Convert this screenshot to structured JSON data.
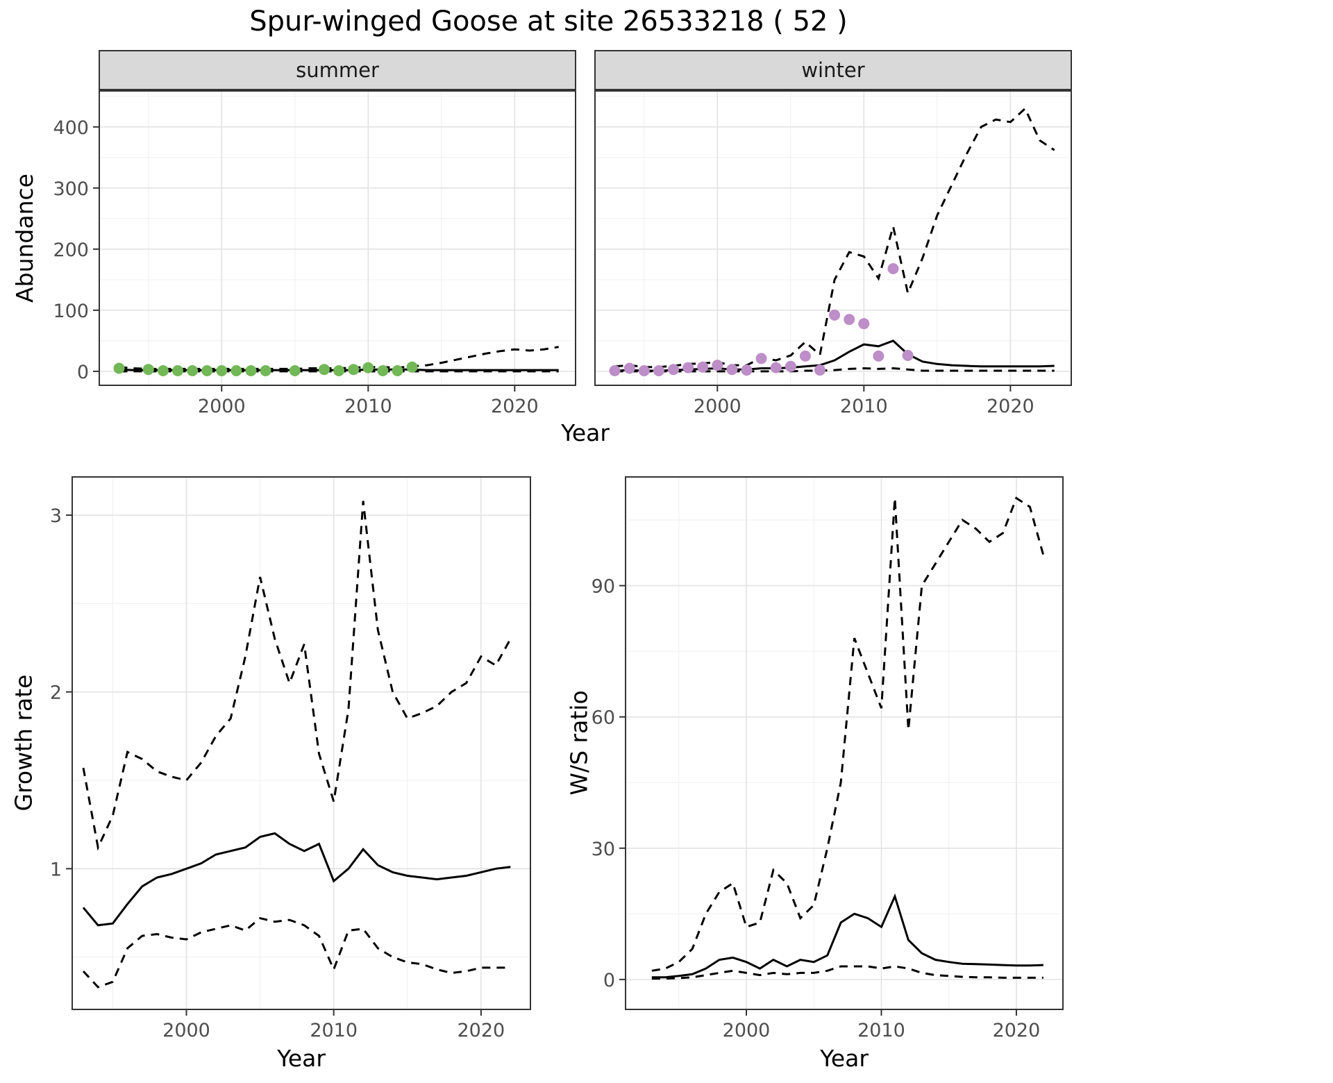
{
  "title": "Spur-winged Goose at site 26533218 ( 52 )",
  "colors": {
    "summer_point": "#73b857",
    "winter_point": "#bd8ec7",
    "line": "#000000",
    "grid_major": "#e2e2e2",
    "grid_minor": "#efefef",
    "strip_bg": "#d9d9d9",
    "panel_border": "#333333",
    "tick_label": "#4d4d4d",
    "text": "#000000"
  },
  "abundance": {
    "ylabel": "Abundance",
    "xlabel": "Year",
    "facets": [
      {
        "label": "summer"
      },
      {
        "label": "winter"
      }
    ]
  },
  "growth": {
    "ylabel": "Growth rate",
    "xlabel": "Year"
  },
  "ratio": {
    "ylabel": "W/S ratio",
    "xlabel": "Year"
  },
  "chart_data": [
    {
      "id": "abundance-summer",
      "type": "line+scatter",
      "facet": "summer",
      "ylabel": "Abundance",
      "xlabel": "Year",
      "xlim": [
        1991.6,
        2024.2
      ],
      "ylim": [
        -24,
        460
      ],
      "xticks": [
        2000,
        2010,
        2020
      ],
      "yticks": [
        0,
        100,
        200,
        300,
        400
      ],
      "grid": true,
      "series": [
        {
          "name": "fitted",
          "style": "solid",
          "x": [
            1993,
            1994,
            1995,
            1996,
            1997,
            1998,
            1999,
            2000,
            2001,
            2002,
            2003,
            2004,
            2005,
            2006,
            2007,
            2008,
            2009,
            2010,
            2011,
            2012,
            2013,
            2014,
            2015,
            2016,
            2017,
            2018,
            2019,
            2020,
            2021,
            2022,
            2023
          ],
          "y": [
            3,
            2,
            2,
            2,
            2,
            2,
            2,
            2,
            2,
            2,
            2,
            2,
            2,
            2,
            2,
            2,
            2,
            3,
            3,
            3,
            3,
            2,
            2,
            2,
            2,
            2,
            2,
            2,
            2,
            2,
            2
          ]
        },
        {
          "name": "upper-ci",
          "style": "dashed",
          "x": [
            1993,
            1994,
            1995,
            1996,
            1997,
            1998,
            1999,
            2000,
            2001,
            2002,
            2003,
            2004,
            2005,
            2006,
            2007,
            2008,
            2009,
            2010,
            2011,
            2012,
            2013,
            2014,
            2015,
            2016,
            2017,
            2018,
            2019,
            2020,
            2021,
            2022,
            2023
          ],
          "y": [
            7,
            5,
            4,
            4,
            4,
            4,
            4,
            4,
            4,
            4,
            4,
            4,
            4,
            5,
            5,
            5,
            6,
            7,
            7,
            6,
            8,
            10,
            14,
            19,
            24,
            29,
            33,
            36,
            34,
            36,
            40
          ]
        },
        {
          "name": "lower-ci",
          "style": "dashed",
          "x": [
            1993,
            1994,
            1995,
            1996,
            1997,
            1998,
            1999,
            2000,
            2001,
            2002,
            2003,
            2004,
            2005,
            2006,
            2007,
            2008,
            2009,
            2010,
            2011,
            2012,
            2013,
            2014,
            2015,
            2016,
            2017,
            2018,
            2019,
            2020,
            2021,
            2022,
            2023
          ],
          "y": [
            0,
            0,
            0,
            0,
            0,
            0,
            0,
            0,
            0,
            0,
            0,
            0,
            0,
            0,
            0,
            0,
            0,
            0,
            0,
            0,
            0,
            0,
            0,
            0,
            0,
            0,
            0,
            0,
            0,
            0,
            0
          ]
        }
      ],
      "points": {
        "name": "observed-summer",
        "color_key": "summer_point",
        "x": [
          1993,
          1995,
          1996,
          1997,
          1998,
          1999,
          2000,
          2001,
          2002,
          2003,
          2005,
          2007,
          2008,
          2009,
          2010,
          2011,
          2012,
          2013
        ],
        "y": [
          5,
          3,
          1,
          1,
          1,
          1,
          1,
          1,
          1,
          1,
          1,
          3,
          1,
          3,
          6,
          1,
          1,
          7
        ]
      }
    },
    {
      "id": "abundance-winter",
      "type": "line+scatter",
      "facet": "winter",
      "ylabel": "Abundance",
      "xlabel": "Year",
      "xlim": [
        1991.6,
        2024.2
      ],
      "ylim": [
        -24,
        460
      ],
      "xticks": [
        2000,
        2010,
        2020
      ],
      "yticks": [
        0,
        100,
        200,
        300,
        400
      ],
      "grid": true,
      "series": [
        {
          "name": "fitted",
          "style": "solid",
          "x": [
            1993,
            1994,
            1995,
            1996,
            1997,
            1998,
            1999,
            2000,
            2001,
            2002,
            2003,
            2004,
            2005,
            2006,
            2007,
            2008,
            2009,
            2010,
            2011,
            2012,
            2013,
            2014,
            2015,
            2016,
            2017,
            2018,
            2019,
            2020,
            2021,
            2022,
            2023
          ],
          "y": [
            1,
            2,
            1,
            1,
            2,
            3,
            4,
            5,
            3,
            3,
            5,
            5,
            6,
            8,
            10,
            18,
            32,
            44,
            41,
            50,
            28,
            16,
            12,
            10,
            9,
            8,
            8,
            8,
            8,
            8,
            9
          ]
        },
        {
          "name": "upper-ci",
          "style": "dashed",
          "x": [
            1993,
            1994,
            1995,
            1996,
            1997,
            1998,
            1999,
            2000,
            2001,
            2002,
            2003,
            2004,
            2005,
            2006,
            2007,
            2008,
            2009,
            2010,
            2011,
            2012,
            2013,
            2014,
            2015,
            2016,
            2017,
            2018,
            2019,
            2020,
            2021,
            2022,
            2023
          ],
          "y": [
            8,
            10,
            7,
            7,
            9,
            12,
            13,
            15,
            10,
            10,
            22,
            18,
            26,
            48,
            27,
            150,
            195,
            188,
            152,
            237,
            128,
            185,
            255,
            305,
            355,
            400,
            412,
            408,
            430,
            378,
            362
          ]
        },
        {
          "name": "lower-ci",
          "style": "dashed",
          "x": [
            1993,
            1994,
            1995,
            1996,
            1997,
            1998,
            1999,
            2000,
            2001,
            2002,
            2003,
            2004,
            2005,
            2006,
            2007,
            2008,
            2009,
            2010,
            2011,
            2012,
            2013,
            2014,
            2015,
            2016,
            2017,
            2018,
            2019,
            2020,
            2021,
            2022,
            2023
          ],
          "y": [
            0,
            0,
            0,
            0,
            0,
            0,
            0,
            0,
            0,
            0,
            0,
            0,
            0,
            1,
            1,
            2,
            4,
            5,
            4,
            5,
            3,
            1,
            1,
            1,
            1,
            1,
            1,
            1,
            1,
            1,
            1
          ]
        }
      ],
      "points": {
        "name": "observed-winter",
        "color_key": "winter_point",
        "x": [
          1993,
          1994,
          1995,
          1996,
          1997,
          1998,
          1999,
          2000,
          2001,
          2002,
          2003,
          2004,
          2005,
          2006,
          2007,
          2008,
          2009,
          2010,
          2011,
          2012,
          2013
        ],
        "y": [
          1,
          5,
          1,
          1,
          3,
          6,
          7,
          10,
          3,
          2,
          21,
          6,
          8,
          25,
          2,
          92,
          85,
          78,
          25,
          168,
          26
        ]
      }
    },
    {
      "id": "growth-rate",
      "type": "line",
      "title": "",
      "ylabel": "Growth rate",
      "xlabel": "Year",
      "xlim": [
        1992.2,
        2023.4
      ],
      "ylim": [
        0.2,
        3.22
      ],
      "xticks": [
        2000,
        2010,
        2020
      ],
      "yticks": [
        1,
        2,
        3
      ],
      "grid": true,
      "series": [
        {
          "name": "fitted",
          "style": "solid",
          "x": [
            1993,
            1994,
            1995,
            1996,
            1997,
            1998,
            1999,
            2000,
            2001,
            2002,
            2003,
            2004,
            2005,
            2006,
            2007,
            2008,
            2009,
            2010,
            2011,
            2012,
            2013,
            2014,
            2015,
            2016,
            2017,
            2018,
            2019,
            2020,
            2021,
            2022
          ],
          "y": [
            0.78,
            0.68,
            0.69,
            0.8,
            0.9,
            0.95,
            0.97,
            1.0,
            1.03,
            1.08,
            1.1,
            1.12,
            1.18,
            1.2,
            1.14,
            1.1,
            1.14,
            0.93,
            1.0,
            1.11,
            1.02,
            0.98,
            0.96,
            0.95,
            0.94,
            0.95,
            0.96,
            0.98,
            1.0,
            1.01
          ]
        },
        {
          "name": "upper-ci",
          "style": "dashed",
          "x": [
            1993,
            1994,
            1995,
            1996,
            1997,
            1998,
            1999,
            2000,
            2001,
            2002,
            2003,
            2004,
            2005,
            2006,
            2007,
            2008,
            2009,
            2010,
            2011,
            2012,
            2013,
            2014,
            2015,
            2016,
            2017,
            2018,
            2019,
            2020,
            2021,
            2022
          ],
          "y": [
            1.57,
            1.12,
            1.3,
            1.66,
            1.62,
            1.55,
            1.52,
            1.5,
            1.6,
            1.75,
            1.85,
            2.2,
            2.65,
            2.3,
            2.05,
            2.27,
            1.65,
            1.38,
            1.9,
            3.08,
            2.35,
            2.0,
            1.85,
            1.88,
            1.92,
            2.0,
            2.05,
            2.2,
            2.15,
            2.3
          ]
        },
        {
          "name": "lower-ci",
          "style": "dashed",
          "x": [
            1993,
            1994,
            1995,
            1996,
            1997,
            1998,
            1999,
            2000,
            2001,
            2002,
            2003,
            2004,
            2005,
            2006,
            2007,
            2008,
            2009,
            2010,
            2011,
            2012,
            2013,
            2014,
            2015,
            2016,
            2017,
            2018,
            2019,
            2020,
            2021,
            2022
          ],
          "y": [
            0.42,
            0.33,
            0.36,
            0.55,
            0.62,
            0.63,
            0.61,
            0.6,
            0.64,
            0.66,
            0.68,
            0.65,
            0.72,
            0.7,
            0.71,
            0.68,
            0.62,
            0.43,
            0.65,
            0.66,
            0.55,
            0.5,
            0.47,
            0.46,
            0.43,
            0.41,
            0.42,
            0.44,
            0.44,
            0.44
          ]
        }
      ]
    },
    {
      "id": "ws-ratio",
      "type": "line",
      "title": "",
      "ylabel": "W/S ratio",
      "xlabel": "Year",
      "xlim": [
        1991.0,
        2023.5
      ],
      "ylim": [
        -7,
        115
      ],
      "xticks": [
        2000,
        2010,
        2020
      ],
      "yticks": [
        0,
        30,
        60,
        90
      ],
      "grid": true,
      "series": [
        {
          "name": "fitted",
          "style": "solid",
          "x": [
            1993,
            1994,
            1995,
            1996,
            1997,
            1998,
            1999,
            2000,
            2001,
            2002,
            2003,
            2004,
            2005,
            2006,
            2007,
            2008,
            2009,
            2010,
            2011,
            2012,
            2013,
            2014,
            2015,
            2016,
            2017,
            2018,
            2019,
            2020,
            2021,
            2022
          ],
          "y": [
            0.5,
            0.5,
            0.8,
            1.2,
            2.5,
            4.5,
            5.0,
            4.0,
            2.5,
            4.5,
            3.0,
            4.5,
            4.0,
            5.5,
            13,
            15,
            14,
            12,
            19,
            9,
            6,
            4.5,
            4.0,
            3.6,
            3.5,
            3.4,
            3.3,
            3.2,
            3.2,
            3.3
          ]
        },
        {
          "name": "upper-ci",
          "style": "dashed",
          "x": [
            1993,
            1994,
            1995,
            1996,
            1997,
            1998,
            1999,
            2000,
            2001,
            2002,
            2003,
            2004,
            2005,
            2006,
            2007,
            2008,
            2009,
            2010,
            2011,
            2012,
            2013,
            2014,
            2015,
            2016,
            2017,
            2018,
            2019,
            2020,
            2021,
            2022
          ],
          "y": [
            2,
            2.5,
            4,
            7,
            15,
            20,
            22,
            12,
            13,
            25,
            22,
            14,
            17,
            30,
            45,
            78,
            70,
            62,
            110,
            57,
            90,
            95,
            100,
            105,
            103,
            100,
            102,
            110,
            108,
            97
          ]
        },
        {
          "name": "lower-ci",
          "style": "dashed",
          "x": [
            1993,
            1994,
            1995,
            1996,
            1997,
            1998,
            1999,
            2000,
            2001,
            2002,
            2003,
            2004,
            2005,
            2006,
            2007,
            2008,
            2009,
            2010,
            2011,
            2012,
            2013,
            2014,
            2015,
            2016,
            2017,
            2018,
            2019,
            2020,
            2021,
            2022
          ],
          "y": [
            0.2,
            0.2,
            0.3,
            0.5,
            1,
            1.5,
            2,
            1.5,
            1,
            1.5,
            1.2,
            1.5,
            1.5,
            2,
            3,
            3,
            3,
            2.5,
            3,
            2.5,
            1.5,
            1,
            0.8,
            0.6,
            0.5,
            0.5,
            0.4,
            0.4,
            0.4,
            0.4
          ]
        }
      ]
    }
  ]
}
